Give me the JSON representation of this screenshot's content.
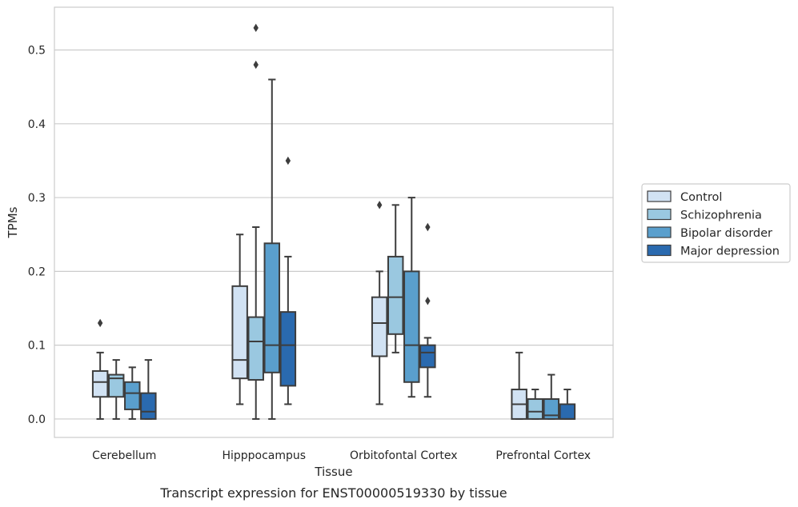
{
  "chart_data": {
    "type": "box",
    "title": "",
    "caption": "Transcript expression for ENST00000519330 by tissue",
    "xlabel": "Tissue",
    "ylabel": "TPMs",
    "ylim": [
      -0.025,
      0.558
    ],
    "yticks": [
      0.0,
      0.1,
      0.2,
      0.3,
      0.4,
      0.5
    ],
    "ytick_labels": [
      "0.0",
      "0.1",
      "0.2",
      "0.3",
      "0.4",
      "0.5"
    ],
    "grid": true,
    "legend_position": "right",
    "categories": [
      "Cerebellum",
      "Hipppocampus",
      "Orbitofontal Cortex",
      "Prefrontal Cortex"
    ],
    "series": [
      {
        "name": "Control",
        "color": "#d1e2f3",
        "boxes": [
          {
            "whislo": 0.0,
            "q1": 0.03,
            "med": 0.05,
            "q3": 0.065,
            "whishi": 0.09,
            "fliers": [
              0.13
            ]
          },
          {
            "whislo": 0.02,
            "q1": 0.055,
            "med": 0.08,
            "q3": 0.18,
            "whishi": 0.25,
            "fliers": []
          },
          {
            "whislo": 0.02,
            "q1": 0.085,
            "med": 0.13,
            "q3": 0.165,
            "whishi": 0.2,
            "fliers": [
              0.29
            ]
          },
          {
            "whislo": 0.0,
            "q1": 0.0,
            "med": 0.02,
            "q3": 0.04,
            "whishi": 0.09,
            "fliers": []
          }
        ]
      },
      {
        "name": "Schizophrenia",
        "color": "#9ac8e0",
        "boxes": [
          {
            "whislo": 0.0,
            "q1": 0.03,
            "med": 0.055,
            "q3": 0.06,
            "whishi": 0.08,
            "fliers": []
          },
          {
            "whislo": 0.0,
            "q1": 0.053,
            "med": 0.105,
            "q3": 0.138,
            "whishi": 0.26,
            "fliers": [
              0.48,
              0.53
            ]
          },
          {
            "whislo": 0.09,
            "q1": 0.115,
            "med": 0.165,
            "q3": 0.22,
            "whishi": 0.29,
            "fliers": []
          },
          {
            "whislo": 0.0,
            "q1": 0.0,
            "med": 0.01,
            "q3": 0.027,
            "whishi": 0.04,
            "fliers": []
          }
        ]
      },
      {
        "name": "Bipolar disorder",
        "color": "#5a9fcd",
        "boxes": [
          {
            "whislo": 0.0,
            "q1": 0.013,
            "med": 0.035,
            "q3": 0.05,
            "whishi": 0.07,
            "fliers": []
          },
          {
            "whislo": 0.0,
            "q1": 0.063,
            "med": 0.1,
            "q3": 0.238,
            "whishi": 0.46,
            "fliers": []
          },
          {
            "whislo": 0.03,
            "q1": 0.05,
            "med": 0.1,
            "q3": 0.2,
            "whishi": 0.3,
            "fliers": []
          },
          {
            "whislo": 0.0,
            "q1": 0.0,
            "med": 0.005,
            "q3": 0.027,
            "whishi": 0.06,
            "fliers": []
          }
        ]
      },
      {
        "name": "Major depression",
        "color": "#2a6aaf",
        "boxes": [
          {
            "whislo": 0.0,
            "q1": 0.0,
            "med": 0.01,
            "q3": 0.035,
            "whishi": 0.08,
            "fliers": []
          },
          {
            "whislo": 0.02,
            "q1": 0.045,
            "med": 0.1,
            "q3": 0.145,
            "whishi": 0.22,
            "fliers": [
              0.35
            ]
          },
          {
            "whislo": 0.03,
            "q1": 0.07,
            "med": 0.09,
            "q3": 0.1,
            "whishi": 0.11,
            "fliers": [
              0.16,
              0.26
            ]
          },
          {
            "whislo": 0.0,
            "q1": 0.0,
            "med": 0.0,
            "q3": 0.02,
            "whishi": 0.04,
            "fliers": []
          }
        ]
      }
    ]
  }
}
